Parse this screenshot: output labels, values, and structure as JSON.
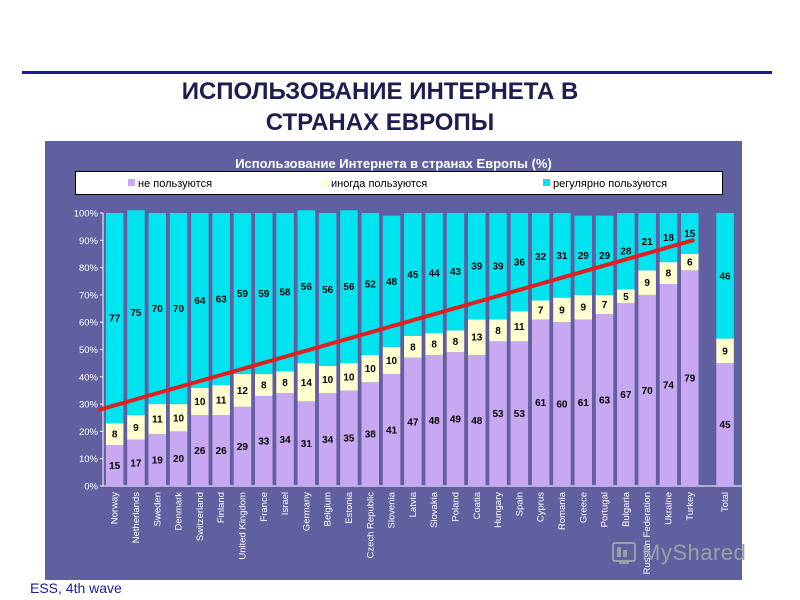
{
  "slide": {
    "title_line1": "ИСПОЛЬЗОВАНИЕ ИНТЕРНЕТА В",
    "title_line2": "СТРАНАХ ЕВРОПЫ",
    "footer": "ESS, 4th wave",
    "watermark": "MyShared"
  },
  "colors": {
    "panel": "#6060a0",
    "never": "#c8a8f0",
    "sometimes": "#ffffd0",
    "regular": "#00e4f0",
    "trend": "#e02020",
    "rule": "#1a1a9a"
  },
  "chart_data": {
    "type": "bar",
    "stacked": true,
    "title": "Использование Интернета в странах Европы (%)",
    "legend_position": "top",
    "ylim": [
      0,
      100
    ],
    "y_ticks": [
      "0%",
      "10%",
      "20%",
      "30%",
      "40%",
      "50%",
      "60%",
      "70%",
      "80%",
      "90%",
      "100%"
    ],
    "categories": [
      "Norway",
      "Netherlands",
      "Sweden",
      "Denmark",
      "Switzerland",
      "Finland",
      "United Kingdom",
      "France",
      "Israel",
      "Germany",
      "Belgium",
      "Estonia",
      "Czech Republic",
      "Slovenia",
      "Latvia",
      "Slovakia",
      "Poland",
      "Coatia",
      "Hungary",
      "Spain",
      "Cyprus",
      "Romania",
      "Greece",
      "Portugal",
      "Bulgaria",
      "Russian Federation",
      "Ukraine",
      "Turkey",
      "Total"
    ],
    "series": [
      {
        "name": "не пользуются",
        "values": [
          15,
          17,
          19,
          20,
          26,
          26,
          29,
          33,
          34,
          31,
          34,
          35,
          38,
          41,
          47,
          48,
          49,
          48,
          53,
          53,
          61,
          60,
          61,
          63,
          67,
          70,
          74,
          79,
          45
        ]
      },
      {
        "name": "иногда пользуются",
        "values": [
          8,
          9,
          11,
          10,
          10,
          11,
          12,
          8,
          8,
          14,
          10,
          10,
          10,
          10,
          8,
          8,
          8,
          13,
          8,
          11,
          7,
          9,
          9,
          7,
          5,
          9,
          8,
          6,
          9
        ]
      },
      {
        "name": "регулярно пользуются",
        "values": [
          77,
          75,
          70,
          70,
          64,
          63,
          59,
          59,
          58,
          56,
          56,
          56,
          52,
          48,
          45,
          44,
          43,
          39,
          39,
          36,
          32,
          31,
          29,
          29,
          28,
          21,
          18,
          15,
          46
        ]
      }
    ],
    "trend_line": {
      "from_category": "Norway",
      "to_category": "Turkey",
      "y_start": 28,
      "y_end": 90
    }
  }
}
